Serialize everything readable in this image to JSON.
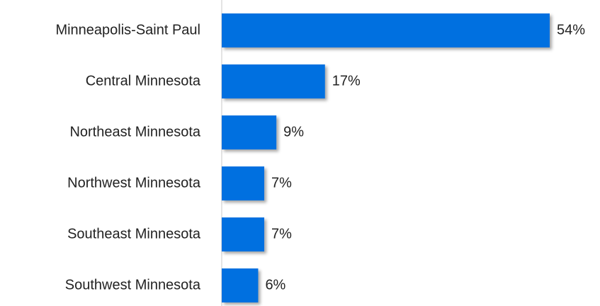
{
  "chart_data": {
    "type": "barh",
    "categories": [
      "Minneapolis-Saint Paul",
      "Central Minnesota",
      "Northeast Minnesota",
      "Northwest Minnesota",
      "Southeast Minnesota",
      "Southwest Minnesota"
    ],
    "values": [
      54,
      17,
      9,
      7,
      7,
      6
    ],
    "value_labels": [
      "54%",
      "17%",
      "9%",
      "7%",
      "7%",
      "6%"
    ],
    "color": "#0070e0"
  }
}
